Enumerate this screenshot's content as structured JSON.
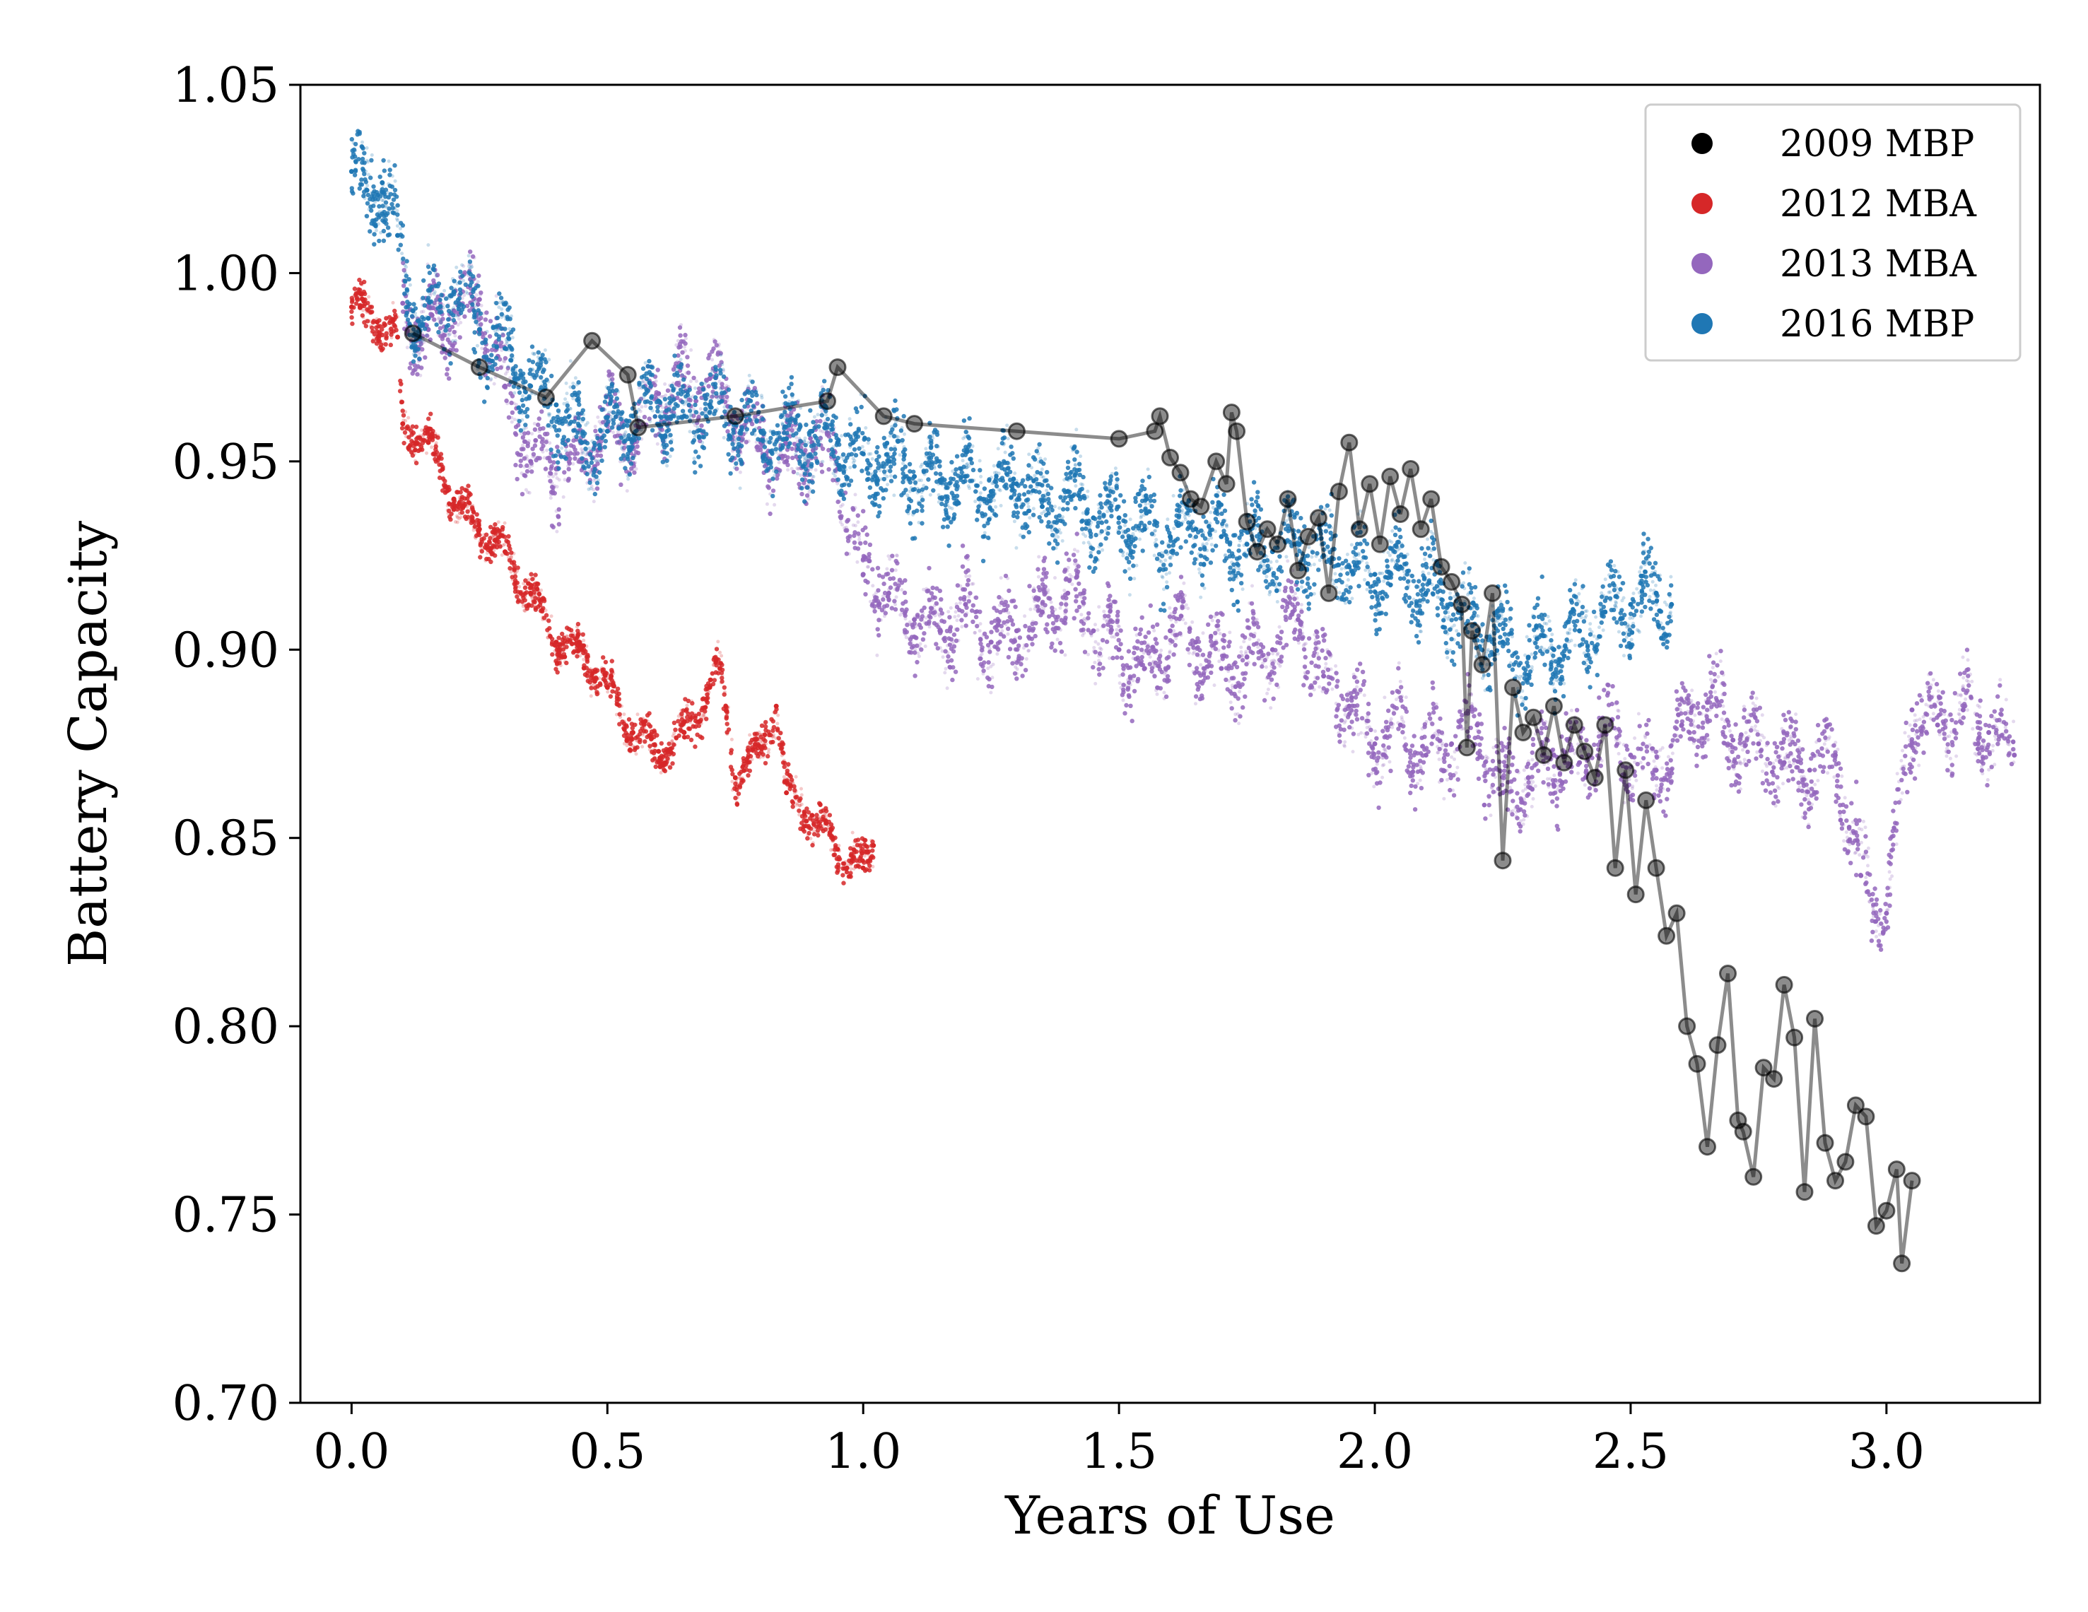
{
  "chart_data": {
    "type": "scatter",
    "title": "",
    "xlabel": "Years of Use",
    "ylabel": "Battery Capacity",
    "xlim": [
      -0.1,
      3.3
    ],
    "ylim": [
      0.7,
      1.05
    ],
    "xticks": [
      "0.0",
      "0.5",
      "1.0",
      "1.5",
      "2.0",
      "2.5",
      "3.0"
    ],
    "yticks": [
      "0.70",
      "0.75",
      "0.80",
      "0.85",
      "0.90",
      "0.95",
      "1.00",
      "1.05"
    ],
    "grid": false,
    "legend_position": "top-right",
    "series": [
      {
        "name": "2009 MBP",
        "color": "#000000",
        "style": "line+markers",
        "x": [
          0.12,
          0.25,
          0.38,
          0.47,
          0.54,
          0.56,
          0.75,
          0.93,
          0.95,
          1.04,
          1.1,
          1.3,
          1.5,
          1.57,
          1.58,
          1.6,
          1.62,
          1.64,
          1.66,
          1.69,
          1.71,
          1.72,
          1.73,
          1.75,
          1.77,
          1.79,
          1.81,
          1.83,
          1.85,
          1.87,
          1.89,
          1.91,
          1.93,
          1.95,
          1.97,
          1.99,
          2.01,
          2.03,
          2.05,
          2.07,
          2.09,
          2.11,
          2.13,
          2.15,
          2.17,
          2.18,
          2.19,
          2.21,
          2.23,
          2.25,
          2.27,
          2.29,
          2.31,
          2.33,
          2.35,
          2.37,
          2.39,
          2.41,
          2.43,
          2.45,
          2.47,
          2.49,
          2.51,
          2.53,
          2.55,
          2.57,
          2.59,
          2.61,
          2.63,
          2.65,
          2.67,
          2.69,
          2.71,
          2.72,
          2.74,
          2.76,
          2.78,
          2.8,
          2.82,
          2.84,
          2.86,
          2.88,
          2.9,
          2.92,
          2.94,
          2.96,
          2.98,
          3.0,
          3.02,
          3.03,
          3.05
        ],
        "y": [
          0.984,
          0.975,
          0.967,
          0.982,
          0.973,
          0.959,
          0.962,
          0.966,
          0.975,
          0.962,
          0.96,
          0.958,
          0.956,
          0.958,
          0.962,
          0.951,
          0.947,
          0.94,
          0.938,
          0.95,
          0.944,
          0.963,
          0.958,
          0.934,
          0.926,
          0.932,
          0.928,
          0.94,
          0.921,
          0.93,
          0.935,
          0.915,
          0.942,
          0.955,
          0.932,
          0.944,
          0.928,
          0.946,
          0.936,
          0.948,
          0.932,
          0.94,
          0.922,
          0.918,
          0.912,
          0.874,
          0.905,
          0.896,
          0.915,
          0.844,
          0.89,
          0.878,
          0.882,
          0.872,
          0.885,
          0.87,
          0.88,
          0.873,
          0.866,
          0.88,
          0.842,
          0.868,
          0.835,
          0.86,
          0.842,
          0.824,
          0.83,
          0.8,
          0.79,
          0.768,
          0.795,
          0.814,
          0.775,
          0.772,
          0.76,
          0.789,
          0.786,
          0.811,
          0.797,
          0.756,
          0.802,
          0.769,
          0.759,
          0.764,
          0.779,
          0.776,
          0.747,
          0.751,
          0.762,
          0.737,
          0.759
        ]
      },
      {
        "name": "2012 MBA",
        "color": "#d62728",
        "style": "dense-points",
        "x": [
          0.0,
          0.05,
          0.09,
          0.1,
          0.15,
          0.2,
          0.25,
          0.3,
          0.35,
          0.4,
          0.45,
          0.5,
          0.55,
          0.6,
          0.65,
          0.7,
          0.72,
          0.75,
          0.8,
          0.83,
          0.85,
          0.9,
          0.95,
          1.0,
          1.02
        ],
        "y": [
          0.991,
          0.987,
          0.983,
          0.96,
          0.955,
          0.94,
          0.932,
          0.926,
          0.915,
          0.902,
          0.9,
          0.89,
          0.878,
          0.873,
          0.878,
          0.89,
          0.895,
          0.866,
          0.874,
          0.885,
          0.862,
          0.856,
          0.847,
          0.842,
          0.848
        ]
      },
      {
        "name": "2013 MBA",
        "color": "#9467bd",
        "style": "dense-points",
        "x": [
          0.1,
          0.15,
          0.2,
          0.25,
          0.3,
          0.35,
          0.4,
          0.45,
          0.5,
          0.55,
          0.6,
          0.65,
          0.7,
          0.75,
          0.8,
          0.85,
          0.9,
          0.95,
          1.0,
          1.05,
          1.1,
          1.15,
          1.2,
          1.25,
          1.3,
          1.35,
          1.4,
          1.45,
          1.5,
          1.55,
          1.6,
          1.65,
          1.7,
          1.75,
          1.8,
          1.85,
          1.9,
          1.95,
          2.0,
          2.05,
          2.1,
          2.15,
          2.2,
          2.25,
          2.3,
          2.35,
          2.4,
          2.45,
          2.5,
          2.55,
          2.6,
          2.65,
          2.7,
          2.75,
          2.8,
          2.85,
          2.9,
          2.95,
          3.0,
          3.05,
          3.1,
          3.15,
          3.2,
          3.25
        ],
        "y": [
          0.992,
          0.985,
          0.99,
          0.993,
          0.97,
          0.95,
          0.948,
          0.95,
          0.96,
          0.955,
          0.968,
          0.97,
          0.972,
          0.962,
          0.955,
          0.95,
          0.955,
          0.948,
          0.92,
          0.915,
          0.908,
          0.905,
          0.912,
          0.902,
          0.905,
          0.91,
          0.915,
          0.905,
          0.9,
          0.895,
          0.905,
          0.902,
          0.895,
          0.898,
          0.9,
          0.908,
          0.893,
          0.885,
          0.875,
          0.88,
          0.872,
          0.875,
          0.88,
          0.862,
          0.866,
          0.872,
          0.87,
          0.878,
          0.872,
          0.868,
          0.88,
          0.886,
          0.876,
          0.875,
          0.87,
          0.868,
          0.872,
          0.84,
          0.83,
          0.884,
          0.88,
          0.884,
          0.878,
          0.872
        ]
      },
      {
        "name": "2016 MBP",
        "color": "#1f77b4",
        "style": "dense-points",
        "x": [
          0.0,
          0.03,
          0.06,
          0.09,
          0.12,
          0.15,
          0.2,
          0.25,
          0.3,
          0.35,
          0.4,
          0.45,
          0.5,
          0.55,
          0.6,
          0.65,
          0.7,
          0.75,
          0.8,
          0.85,
          0.9,
          0.95,
          1.0,
          1.05,
          1.1,
          1.15,
          1.2,
          1.25,
          1.3,
          1.35,
          1.4,
          1.45,
          1.5,
          1.55,
          1.6,
          1.65,
          1.7,
          1.75,
          1.8,
          1.85,
          1.9,
          1.95,
          2.0,
          2.05,
          2.1,
          2.15,
          2.2,
          2.25,
          2.3,
          2.35,
          2.4,
          2.45,
          2.5,
          2.55,
          2.58
        ],
        "y": [
          1.027,
          1.022,
          1.024,
          1.01,
          0.99,
          0.988,
          0.995,
          0.985,
          0.98,
          0.97,
          0.965,
          0.955,
          0.958,
          0.962,
          0.966,
          0.962,
          0.965,
          0.96,
          0.958,
          0.956,
          0.958,
          0.955,
          0.952,
          0.95,
          0.946,
          0.945,
          0.946,
          0.942,
          0.944,
          0.938,
          0.942,
          0.935,
          0.935,
          0.932,
          0.93,
          0.932,
          0.93,
          0.928,
          0.926,
          0.928,
          0.925,
          0.922,
          0.92,
          0.922,
          0.915,
          0.912,
          0.905,
          0.902,
          0.898,
          0.9,
          0.905,
          0.91,
          0.912,
          0.915,
          0.912
        ]
      }
    ]
  }
}
